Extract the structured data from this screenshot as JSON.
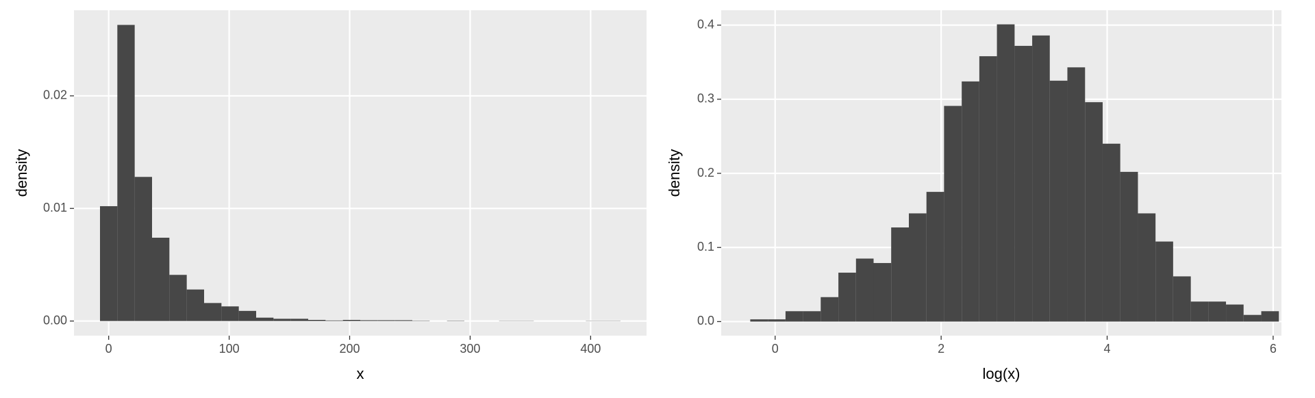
{
  "chart_data": [
    {
      "type": "histogram",
      "xlabel": "x",
      "ylabel": "density",
      "color": "#474747",
      "grid": true,
      "bins": [
        -7.2,
        7.2,
        21.6,
        36,
        50.4,
        64.8,
        79.2,
        93.6,
        108,
        122.4,
        136.8,
        151.2,
        165.6,
        180,
        194.4,
        208.8,
        223.2,
        237.6,
        252,
        266.4,
        280.8,
        295.2,
        309.6,
        324,
        338.4,
        352.8,
        367.2,
        381.6,
        396,
        410.4,
        424.8
      ],
      "values": [
        0.0102,
        0.0263,
        0.0128,
        0.0074,
        0.0041,
        0.0028,
        0.0016,
        0.0013,
        0.0009,
        0.0003,
        0.0002,
        0.0002,
        0.0001,
        5e-05,
        0.0001,
        7e-05,
        7e-05,
        7e-05,
        3e-05,
        0,
        3e-05,
        0,
        0,
        2e-05,
        2e-05,
        0,
        0,
        0,
        2e-05,
        2e-05
      ],
      "xlim": [
        -28.8,
        446.4
      ],
      "xticks": [
        0,
        100,
        200,
        300,
        400
      ],
      "ylim": [
        -0.0013,
        0.0276
      ],
      "yticks": [
        {
          "value": 0,
          "label": "0.00"
        },
        {
          "value": 0.01,
          "label": "0.01"
        },
        {
          "value": 0.02,
          "label": "0.02"
        }
      ]
    },
    {
      "type": "histogram",
      "xlabel": "log(x)",
      "ylabel": "density",
      "color": "#474747",
      "grid": true,
      "bins": [
        -0.3,
        -0.088,
        0.125,
        0.337,
        0.549,
        0.762,
        0.974,
        1.186,
        1.398,
        1.611,
        1.823,
        2.035,
        2.248,
        2.46,
        2.672,
        2.885,
        3.097,
        3.309,
        3.521,
        3.734,
        3.946,
        4.158,
        4.371,
        4.583,
        4.795,
        5.008,
        5.22,
        5.432,
        5.644,
        5.857,
        6.069
      ],
      "values": [
        0.003,
        0.003,
        0.014,
        0.014,
        0.033,
        0.066,
        0.085,
        0.079,
        0.127,
        0.146,
        0.175,
        0.291,
        0.324,
        0.358,
        0.401,
        0.372,
        0.386,
        0.325,
        0.343,
        0.296,
        0.24,
        0.202,
        0.146,
        0.108,
        0.061,
        0.027,
        0.027,
        0.023,
        0.009,
        0.014
      ],
      "xlim": [
        -0.65,
        6.1
      ],
      "xticks": [
        0,
        2,
        4,
        6
      ],
      "ylim": [
        -0.019,
        0.42
      ],
      "yticks": [
        {
          "value": 0,
          "label": "0.0"
        },
        {
          "value": 0.1,
          "label": "0.1"
        },
        {
          "value": 0.2,
          "label": "0.2"
        },
        {
          "value": 0.3,
          "label": "0.3"
        },
        {
          "value": 0.4,
          "label": "0.4"
        }
      ]
    }
  ]
}
